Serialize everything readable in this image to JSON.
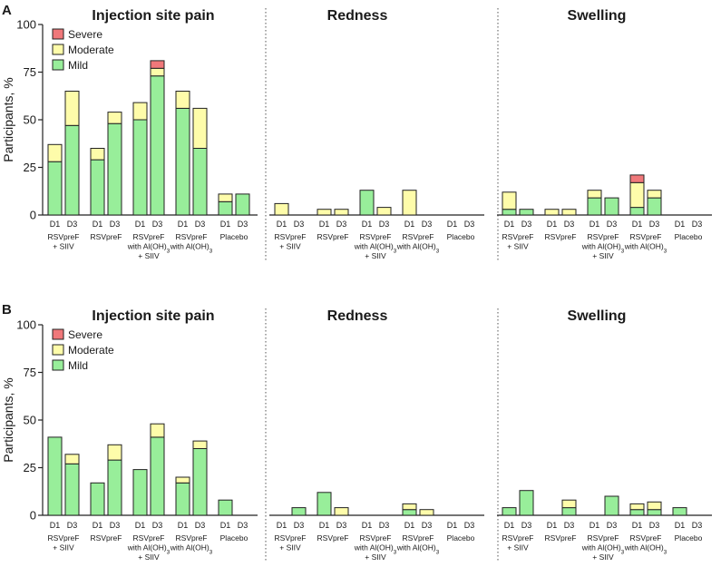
{
  "figure": {
    "panel_letters": [
      "A",
      "B"
    ],
    "ylabel": "Participants, %",
    "y_ticks": [
      "0",
      "25",
      "50",
      "75",
      "100"
    ],
    "section_titles": [
      "Injection site pain",
      "Redness",
      "Swelling"
    ],
    "day_labels": [
      "D1",
      "D3"
    ],
    "legend": {
      "severe": "Severe",
      "moderate": "Moderate",
      "mild": "Mild"
    },
    "groups": [
      {
        "lines": [
          "RSVpreF",
          "+ SIIV"
        ]
      },
      {
        "lines": [
          "RSVpreF"
        ]
      },
      {
        "lines": [
          "RSVpreF",
          "with Al(OH)",
          "+ SIIV"
        ],
        "sub3": true
      },
      {
        "lines": [
          "RSVpreF",
          "with Al(OH)"
        ],
        "sub3": true
      },
      {
        "lines": [
          "Placebo"
        ]
      }
    ],
    "colors": {
      "mild": "#98ee9a",
      "moderate": "#fefcaa",
      "severe": "#f0787a",
      "stroke": "#222222"
    }
  },
  "chart_data": [
    {
      "panel": "A",
      "type": "bar",
      "stacked": true,
      "ylabel": "Participants, %",
      "ylim": [
        0,
        100
      ],
      "categories": [
        "RSVpreF + SIIV",
        "RSVpreF",
        "RSVpreF with Al(OH)3 + SIIV",
        "RSVpreF with Al(OH)3",
        "Placebo"
      ],
      "days": [
        "D1",
        "D3"
      ],
      "sections": [
        {
          "title": "Injection site pain",
          "bars": [
            [
              {
                "mild": 28,
                "moderate": 9,
                "severe": 0
              },
              {
                "mild": 47,
                "moderate": 18,
                "severe": 0
              }
            ],
            [
              {
                "mild": 29,
                "moderate": 6,
                "severe": 0
              },
              {
                "mild": 48,
                "moderate": 6,
                "severe": 0
              }
            ],
            [
              {
                "mild": 50,
                "moderate": 9,
                "severe": 0
              },
              {
                "mild": 73,
                "moderate": 4,
                "severe": 4
              }
            ],
            [
              {
                "mild": 56,
                "moderate": 9,
                "severe": 0
              },
              {
                "mild": 35,
                "moderate": 21,
                "severe": 0
              }
            ],
            [
              {
                "mild": 7,
                "moderate": 4,
                "severe": 0
              },
              {
                "mild": 11,
                "moderate": 0,
                "severe": 0
              }
            ]
          ]
        },
        {
          "title": "Redness",
          "bars": [
            [
              {
                "mild": 0,
                "moderate": 6,
                "severe": 0
              },
              {
                "mild": 0,
                "moderate": 0,
                "severe": 0
              }
            ],
            [
              {
                "mild": 0,
                "moderate": 3,
                "severe": 0
              },
              {
                "mild": 0,
                "moderate": 3,
                "severe": 0
              }
            ],
            [
              {
                "mild": 13,
                "moderate": 0,
                "severe": 0
              },
              {
                "mild": 0,
                "moderate": 4,
                "severe": 0
              }
            ],
            [
              {
                "mild": 0,
                "moderate": 13,
                "severe": 0
              },
              {
                "mild": 0,
                "moderate": 0,
                "severe": 0
              }
            ],
            [
              {
                "mild": 0,
                "moderate": 0,
                "severe": 0
              },
              {
                "mild": 0,
                "moderate": 0,
                "severe": 0
              }
            ]
          ]
        },
        {
          "title": "Swelling",
          "bars": [
            [
              {
                "mild": 3,
                "moderate": 9,
                "severe": 0
              },
              {
                "mild": 3,
                "moderate": 0,
                "severe": 0
              }
            ],
            [
              {
                "mild": 0,
                "moderate": 3,
                "severe": 0
              },
              {
                "mild": 0,
                "moderate": 3,
                "severe": 0
              }
            ],
            [
              {
                "mild": 9,
                "moderate": 4,
                "severe": 0
              },
              {
                "mild": 9,
                "moderate": 0,
                "severe": 0
              }
            ],
            [
              {
                "mild": 4,
                "moderate": 13,
                "severe": 4
              },
              {
                "mild": 9,
                "moderate": 4,
                "severe": 0
              }
            ],
            [
              {
                "mild": 0,
                "moderate": 0,
                "severe": 0
              },
              {
                "mild": 0,
                "moderate": 0,
                "severe": 0
              }
            ]
          ]
        }
      ]
    },
    {
      "panel": "B",
      "type": "bar",
      "stacked": true,
      "ylabel": "Participants, %",
      "ylim": [
        0,
        100
      ],
      "categories": [
        "RSVpreF + SIIV",
        "RSVpreF",
        "RSVpreF with Al(OH)3 + SIIV",
        "RSVpreF with Al(OH)3",
        "Placebo"
      ],
      "days": [
        "D1",
        "D3"
      ],
      "sections": [
        {
          "title": "Injection site pain",
          "bars": [
            [
              {
                "mild": 41,
                "moderate": 0,
                "severe": 0
              },
              {
                "mild": 27,
                "moderate": 5,
                "severe": 0
              }
            ],
            [
              {
                "mild": 17,
                "moderate": 0,
                "severe": 0
              },
              {
                "mild": 29,
                "moderate": 8,
                "severe": 0
              }
            ],
            [
              {
                "mild": 24,
                "moderate": 0,
                "severe": 0
              },
              {
                "mild": 41,
                "moderate": 7,
                "severe": 0
              }
            ],
            [
              {
                "mild": 17,
                "moderate": 3,
                "severe": 0
              },
              {
                "mild": 35,
                "moderate": 4,
                "severe": 0
              }
            ],
            [
              {
                "mild": 8,
                "moderate": 0,
                "severe": 0
              },
              {
                "mild": 0,
                "moderate": 0,
                "severe": 0
              }
            ]
          ]
        },
        {
          "title": "Redness",
          "bars": [
            [
              {
                "mild": 0,
                "moderate": 0,
                "severe": 0
              },
              {
                "mild": 4,
                "moderate": 0,
                "severe": 0
              }
            ],
            [
              {
                "mild": 12,
                "moderate": 0,
                "severe": 0
              },
              {
                "mild": 0,
                "moderate": 4,
                "severe": 0
              }
            ],
            [
              {
                "mild": 0,
                "moderate": 0,
                "severe": 0
              },
              {
                "mild": 0,
                "moderate": 0,
                "severe": 0
              }
            ],
            [
              {
                "mild": 3,
                "moderate": 3,
                "severe": 0
              },
              {
                "mild": 0,
                "moderate": 3,
                "severe": 0
              }
            ],
            [
              {
                "mild": 0,
                "moderate": 0,
                "severe": 0
              },
              {
                "mild": 0,
                "moderate": 0,
                "severe": 0
              }
            ]
          ]
        },
        {
          "title": "Swelling",
          "bars": [
            [
              {
                "mild": 4,
                "moderate": 0,
                "severe": 0
              },
              {
                "mild": 13,
                "moderate": 0,
                "severe": 0
              }
            ],
            [
              {
                "mild": 0,
                "moderate": 0,
                "severe": 0
              },
              {
                "mild": 4,
                "moderate": 4,
                "severe": 0
              }
            ],
            [
              {
                "mild": 0,
                "moderate": 0,
                "severe": 0
              },
              {
                "mild": 10,
                "moderate": 0,
                "severe": 0
              }
            ],
            [
              {
                "mild": 3,
                "moderate": 3,
                "severe": 0
              },
              {
                "mild": 3,
                "moderate": 4,
                "severe": 0
              }
            ],
            [
              {
                "mild": 4,
                "moderate": 0,
                "severe": 0
              },
              {
                "mild": 0,
                "moderate": 0,
                "severe": 0
              }
            ]
          ]
        }
      ]
    }
  ]
}
